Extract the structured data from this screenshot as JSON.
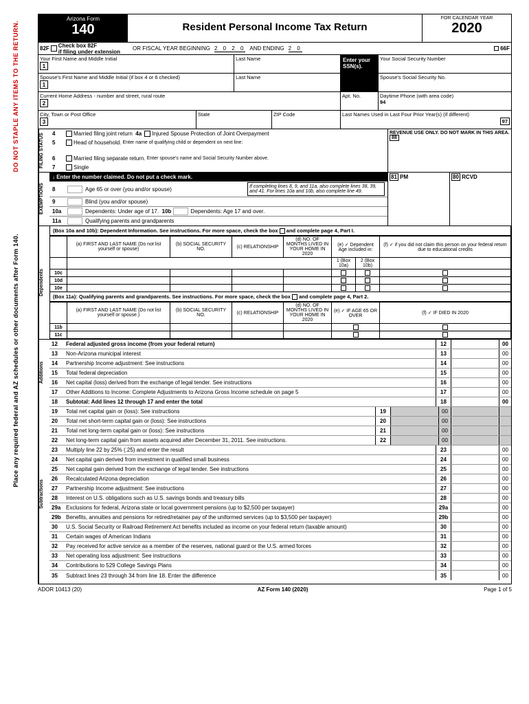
{
  "side_red": "DO NOT STAPLE ANY ITEMS TO THE RETURN.",
  "side_black": "Place any required federal and AZ schedules or other documents after Form 140.",
  "header": {
    "state": "Arizona Form",
    "form_no": "140",
    "title": "Resident Personal Income Tax Return",
    "year_lbl": "FOR CALENDAR YEAR",
    "year": "2020"
  },
  "row82": {
    "num": "82F",
    "chk": "Check box 82F",
    "ext": "if filing under extension",
    "fy": "OR FISCAL YEAR BEGINNING",
    "fy_mid": "2 0 2 0",
    "fy_end": "AND ENDING",
    "fy_end2": "2 0",
    "r": "66F"
  },
  "name": {
    "f1": "Your First Name and Middle Initial",
    "l1": "Last Name",
    "ssn1": "Your Social Security Number",
    "f2": "Spouse's First Name and Middle Initial (if box 4 or 6 checked)",
    "l2": "Last Name",
    "ssn2": "Spouse's Social Security No.",
    "enter": "Enter your SSN(s).",
    "addr": "Current Home Address - number and street, rural route",
    "apt": "Apt. No.",
    "phone": "Daytime Phone (with area code)",
    "phone_n": "94",
    "city": "City, Town or Post Office",
    "state": "State",
    "zip": "ZIP Code",
    "prior": "Last Names Used in Last Four Prior Year(s)  (if different)",
    "prior_n": "97"
  },
  "fs": {
    "title": "FILING STATUS",
    "l4": "Married filing joint return",
    "l4a": "4a",
    "l4a_t": "Injured Spouse Protection of Joint Overpayment",
    "l5": "Head of household.",
    "l5_n": "Enter name of qualifying child or dependent on next line:",
    "l6": "Married filing separate return.",
    "l6_n": "Enter spouse's name and Social Security Number above.",
    "l7": "Single",
    "rev": "REVENUE USE ONLY. DO NOT MARK IN THIS AREA.",
    "rev_n": "88"
  },
  "ex": {
    "title": "EXEMPTIONS",
    "bar": "↓   Enter the number claimed.  Do not put a check mark.",
    "l8": "Age 65 or over (you and/or spouse)",
    "l9": "Blind (you and/or spouse)",
    "note": "If completing lines 8, 9, and 11a, also complete lines 38, 39, and 41. For lines 10a and 10b, also complete line 49.",
    "l10a": "Dependents: Under age of 17.",
    "l10b": "10b",
    "l10b_t": "Dependents: Age 17 and over.",
    "l11a": "Qualifying parents and grandparents",
    "pm": "PM",
    "pm_n": "81",
    "rcvd": "RCVD",
    "rcvd_n": "80"
  },
  "dep1": {
    "hdr": "(Box 10a and 10b):  Dependent Information.  See instructions.",
    "more": "For more space, check the box",
    "more2": "and complete page 4, Part I.",
    "ca": "(a)\nFIRST AND LAST NAME\n(Do not list yourself or spouse)",
    "cb": "(b)\nSOCIAL SECURITY NO.",
    "cc": "(c)\nRELATIONSHIP",
    "cd": "(d)\nNO. OF MONTHS LIVED IN YOUR HOME IN 2020",
    "ce": "(e)\n✓ Dependent Age included in:",
    "ce1": "1\n(Box 10a)",
    "ce2": "2\n(Box 10b)",
    "cf": "(f)\n✓ if you did not claim this person on your federal return due to educational credits",
    "rows": [
      "10c",
      "10d",
      "10e"
    ]
  },
  "dep2": {
    "hdr": "(Box 11a):  Qualifying parents and grandparents.  See instructions.",
    "more": "For more space, check the box",
    "more2": "and complete page 4, Part 2.",
    "ca": "(a)\nFIRST AND LAST NAME\n(Do not list yourself or spouse.)",
    "cb": "(b)\nSOCIAL SECURITY NO.",
    "cc": "(c)\nRELATIONSHIP",
    "cd": "(d)\nNO. OF MONTHS LIVED IN YOUR HOME IN 2020",
    "ce": "(e)\n✓ IF AGE 65 OR OVER",
    "cf": "(f)\n✓ IF DIED IN 2020",
    "rows": [
      "11b",
      "11c"
    ]
  },
  "sec_dep": "Dependents",
  "sec_add": "Additions",
  "sec_sub": "Subtractions",
  "lines": [
    {
      "n": "12",
      "t": "Federal adjusted gross income (from your federal return)",
      "r": "12",
      "c": "00",
      "b": true
    },
    {
      "n": "13",
      "t": "Non-Arizona municipal interest",
      "r": "13",
      "c": "00"
    },
    {
      "n": "14",
      "t": "Partnership Income adjustment:  See instructions",
      "r": "14",
      "c": "00"
    },
    {
      "n": "15",
      "t": "Total federal depreciation",
      "r": "15",
      "c": "00"
    },
    {
      "n": "16",
      "t": "Net capital (loss) derived from the exchange of legal tender.  See instructions",
      "r": "16",
      "c": "00"
    },
    {
      "n": "17",
      "t": "Other Additions to Income:  Complete Adjustments to Arizona Gross Income schedule on page 5",
      "r": "17",
      "c": "00"
    },
    {
      "n": "18",
      "t": "Subtotal:  Add lines 12 through 17 and enter the total",
      "r": "18",
      "c": "00",
      "b": true
    },
    {
      "n": "19",
      "t": "Total net capital gain or (loss):  See instructions",
      "r": "19",
      "c": "00",
      "inset": true,
      "gray": true
    },
    {
      "n": "20",
      "t": "Total net short-term capital gain or (loss):  See instructions",
      "r": "20",
      "c": "00",
      "inset": true,
      "gray": true
    },
    {
      "n": "21",
      "t": "Total net long-term capital gain or (loss):  See instructions",
      "r": "21",
      "c": "00",
      "inset": true,
      "gray": true
    },
    {
      "n": "22",
      "t": "Net long-term capital gain from assets acquired after December 31, 2011.  See instructions.",
      "r": "22",
      "c": "00",
      "inset": true,
      "gray": true
    },
    {
      "n": "23",
      "t": "Multiply line 22 by 25% (.25) and enter the result",
      "r": "23",
      "c": "00"
    },
    {
      "n": "24",
      "t": "Net capital gain derived from investment in qualified small business",
      "r": "24",
      "c": "00"
    },
    {
      "n": "25",
      "t": "Net capital gain derived from the exchange of legal tender.  See instructions",
      "r": "25",
      "c": "00"
    },
    {
      "n": "26",
      "t": "Recalculated Arizona depreciation",
      "r": "26",
      "c": "00"
    },
    {
      "n": "27",
      "t": "Partnership Income adjustment:  See instructions",
      "r": "27",
      "c": "00"
    },
    {
      "n": "28",
      "t": "Interest on U.S. obligations such as U.S. savings bonds and treasury bills",
      "r": "28",
      "c": "00"
    },
    {
      "n": "29a",
      "t": "Exclusions for federal, Arizona state or local government pensions (up to $2,500 per taxpayer)",
      "r": "29a",
      "c": "00"
    },
    {
      "n": "29b",
      "t": "Benefits, annuities and pensions for retired/retainer pay of the uniformed services (up to $3,500 per taxpayer)",
      "r": "29b",
      "c": "00"
    },
    {
      "n": "30",
      "t": "U.S. Social Security or Railroad Retirement Act benefits included as income on your federal return (taxable amount)",
      "r": "30",
      "c": "00"
    },
    {
      "n": "31",
      "t": "Certain wages of American Indians",
      "r": "31",
      "c": "00"
    },
    {
      "n": "32",
      "t": "Pay received for active service as a member of the reserves, national guard or the U.S. armed forces",
      "r": "32",
      "c": "00"
    },
    {
      "n": "33",
      "t": "Net operating loss adjustment:  See instructions",
      "r": "33",
      "c": "00"
    },
    {
      "n": "34",
      "t": "Contributions to 529 College Savings Plans",
      "r": "34",
      "c": "00"
    },
    {
      "n": "35",
      "t": "Subtract lines 23 through 34 from line 18.  Enter the difference",
      "r": "35",
      "c": "00"
    }
  ],
  "footer": {
    "l": "ADOR 10413 (20)",
    "m": "AZ Form 140 (2020)",
    "r": "Page 1 of 5"
  }
}
